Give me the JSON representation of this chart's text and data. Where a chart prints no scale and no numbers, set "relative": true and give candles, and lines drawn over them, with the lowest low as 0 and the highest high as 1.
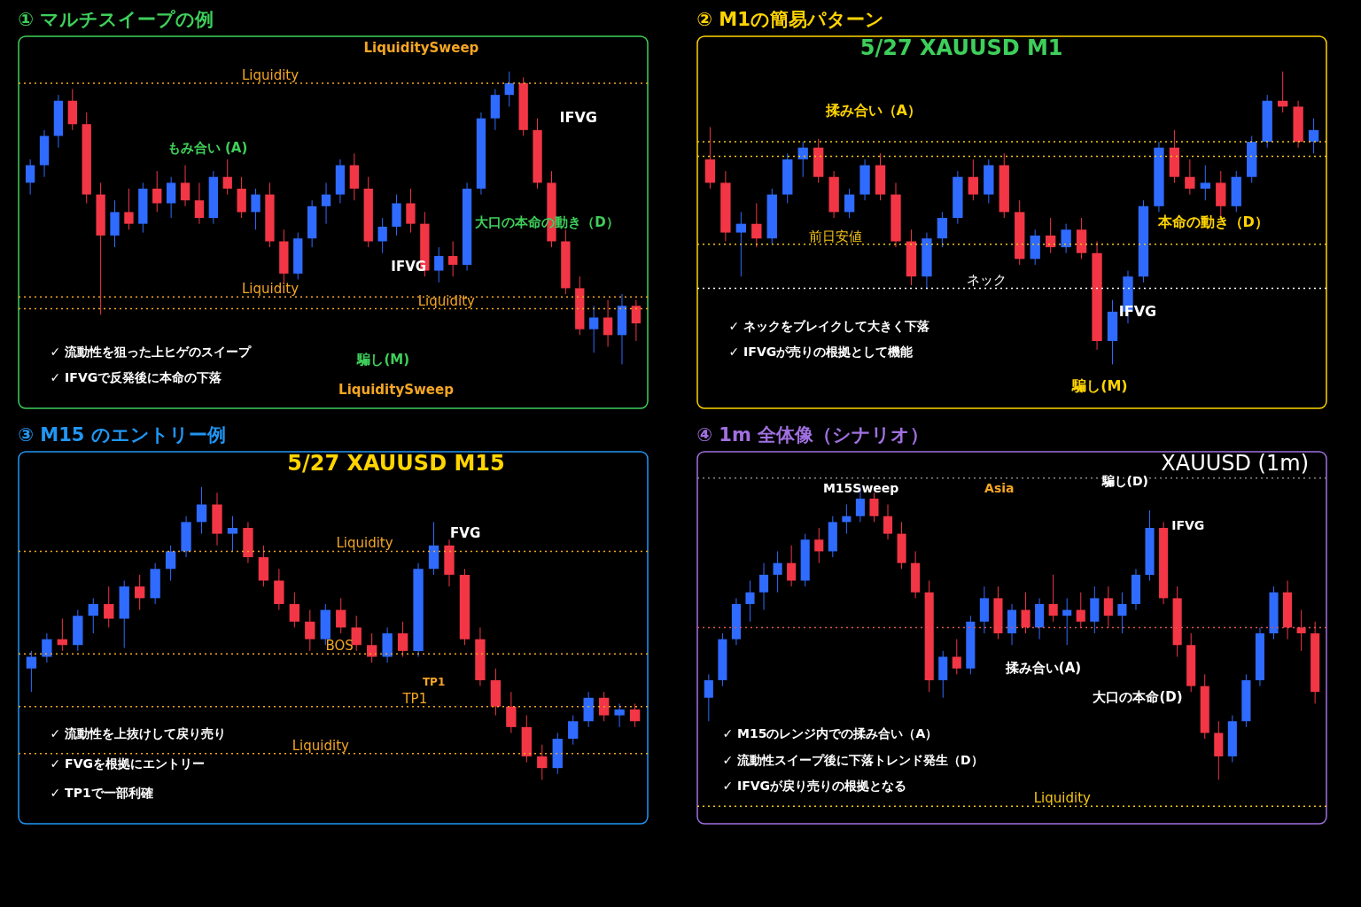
{
  "chart_data": [
    {
      "type": "candlestick",
      "title": "① マルチスイープの例",
      "relative": true,
      "categories": [
        null,
        null,
        null,
        null,
        null,
        null,
        null,
        null,
        null,
        null,
        null,
        null,
        null,
        null,
        null,
        null,
        null,
        null,
        null,
        null,
        null,
        null,
        null,
        null,
        null,
        null,
        null,
        null,
        null,
        null,
        null,
        null,
        null,
        null,
        null,
        null,
        null,
        null,
        null,
        null,
        null,
        null,
        null,
        null
      ],
      "ohlc": [
        [
          0.62,
          0.7,
          0.58,
          0.68
        ],
        [
          0.68,
          0.8,
          0.64,
          0.78
        ],
        [
          0.78,
          0.92,
          0.74,
          0.9
        ],
        [
          0.9,
          0.94,
          0.8,
          0.82
        ],
        [
          0.82,
          0.86,
          0.55,
          0.58
        ],
        [
          0.58,
          0.62,
          0.17,
          0.44
        ],
        [
          0.44,
          0.56,
          0.4,
          0.52
        ],
        [
          0.52,
          0.6,
          0.46,
          0.48
        ],
        [
          0.48,
          0.62,
          0.45,
          0.6
        ],
        [
          0.6,
          0.66,
          0.52,
          0.55
        ],
        [
          0.55,
          0.64,
          0.5,
          0.62
        ],
        [
          0.62,
          0.68,
          0.54,
          0.56
        ],
        [
          0.56,
          0.62,
          0.48,
          0.5
        ],
        [
          0.5,
          0.66,
          0.48,
          0.64
        ],
        [
          0.64,
          0.7,
          0.58,
          0.6
        ],
        [
          0.6,
          0.64,
          0.5,
          0.52
        ],
        [
          0.52,
          0.6,
          0.46,
          0.58
        ],
        [
          0.58,
          0.62,
          0.4,
          0.42
        ],
        [
          0.42,
          0.46,
          0.28,
          0.31
        ],
        [
          0.31,
          0.45,
          0.29,
          0.43
        ],
        [
          0.43,
          0.56,
          0.4,
          0.54
        ],
        [
          0.54,
          0.62,
          0.48,
          0.58
        ],
        [
          0.58,
          0.7,
          0.55,
          0.68
        ],
        [
          0.68,
          0.72,
          0.56,
          0.6
        ],
        [
          0.6,
          0.64,
          0.4,
          0.42
        ],
        [
          0.42,
          0.5,
          0.38,
          0.47
        ],
        [
          0.47,
          0.58,
          0.44,
          0.55
        ],
        [
          0.55,
          0.6,
          0.45,
          0.48
        ],
        [
          0.48,
          0.52,
          0.3,
          0.32
        ],
        [
          0.32,
          0.4,
          0.28,
          0.37
        ],
        [
          0.37,
          0.42,
          0.3,
          0.34
        ],
        [
          0.34,
          0.62,
          0.32,
          0.6
        ],
        [
          0.6,
          0.86,
          0.58,
          0.84
        ],
        [
          0.84,
          0.94,
          0.8,
          0.92
        ],
        [
          0.92,
          1.0,
          0.88,
          0.96
        ],
        [
          0.96,
          0.98,
          0.78,
          0.8
        ],
        [
          0.8,
          0.84,
          0.6,
          0.62
        ],
        [
          0.62,
          0.66,
          0.4,
          0.42
        ],
        [
          0.42,
          0.46,
          0.24,
          0.26
        ],
        [
          0.26,
          0.3,
          0.1,
          0.12
        ],
        [
          0.12,
          0.2,
          0.04,
          0.16
        ],
        [
          0.16,
          0.22,
          0.06,
          0.1
        ],
        [
          0.1,
          0.24,
          0.0,
          0.2
        ],
        [
          0.2,
          0.22,
          0.08,
          0.14
        ]
      ],
      "ref_lines": [
        {
          "axis": "y",
          "value": 0.96,
          "label": "Liquidity",
          "color": "#f5a623",
          "line_style": "dotted"
        },
        {
          "axis": "y",
          "value": 0.23,
          "label": "Liquidity",
          "color": "#f5a623",
          "line_style": "dotted"
        },
        {
          "axis": "y",
          "value": 0.19,
          "label": "Liquidity",
          "color": "#f5a623",
          "line_style": "dotted"
        }
      ],
      "annotations": [
        "LiquiditySweep",
        "IFVG",
        "もみ合い (A)",
        "大口の本命の動き（D）",
        "IFVG",
        "騙し(M)",
        "LiquiditySweep",
        "✓ 流動性を狙った上ヒゲのスイープ",
        "✓ IFVGで反発後に本命の下落"
      ]
    },
    {
      "type": "candlestick",
      "title": "② M1の簡易パターン",
      "subtitle": "5/27 XAUUSD M1",
      "relative": true,
      "categories": [
        null,
        null,
        null,
        null,
        null,
        null,
        null,
        null,
        null,
        null,
        null,
        null,
        null,
        null,
        null,
        null,
        null,
        null,
        null,
        null,
        null,
        null,
        null,
        null,
        null,
        null,
        null,
        null,
        null,
        null,
        null,
        null,
        null,
        null,
        null,
        null,
        null,
        null,
        null,
        null
      ],
      "ohlc": [
        [
          0.7,
          0.81,
          0.6,
          0.62
        ],
        [
          0.62,
          0.66,
          0.42,
          0.45
        ],
        [
          0.45,
          0.52,
          0.3,
          0.48
        ],
        [
          0.48,
          0.55,
          0.4,
          0.43
        ],
        [
          0.43,
          0.6,
          0.41,
          0.58
        ],
        [
          0.58,
          0.72,
          0.55,
          0.7
        ],
        [
          0.7,
          0.76,
          0.64,
          0.74
        ],
        [
          0.74,
          0.77,
          0.62,
          0.64
        ],
        [
          0.64,
          0.66,
          0.5,
          0.52
        ],
        [
          0.52,
          0.6,
          0.5,
          0.58
        ],
        [
          0.58,
          0.7,
          0.56,
          0.68
        ],
        [
          0.68,
          0.72,
          0.56,
          0.58
        ],
        [
          0.58,
          0.62,
          0.4,
          0.42
        ],
        [
          0.42,
          0.46,
          0.27,
          0.3
        ],
        [
          0.3,
          0.45,
          0.26,
          0.43
        ],
        [
          0.43,
          0.52,
          0.4,
          0.5
        ],
        [
          0.5,
          0.66,
          0.48,
          0.64
        ],
        [
          0.64,
          0.7,
          0.56,
          0.58
        ],
        [
          0.58,
          0.7,
          0.55,
          0.68
        ],
        [
          0.68,
          0.72,
          0.5,
          0.52
        ],
        [
          0.52,
          0.56,
          0.34,
          0.36
        ],
        [
          0.36,
          0.46,
          0.34,
          0.44
        ],
        [
          0.44,
          0.5,
          0.38,
          0.4
        ],
        [
          0.4,
          0.48,
          0.38,
          0.46
        ],
        [
          0.46,
          0.5,
          0.36,
          0.38
        ],
        [
          0.38,
          0.42,
          0.05,
          0.08
        ],
        [
          0.08,
          0.22,
          0.0,
          0.18
        ],
        [
          0.18,
          0.32,
          0.14,
          0.3
        ],
        [
          0.3,
          0.56,
          0.28,
          0.54
        ],
        [
          0.54,
          0.76,
          0.52,
          0.74
        ],
        [
          0.74,
          0.8,
          0.62,
          0.64
        ],
        [
          0.64,
          0.7,
          0.58,
          0.6
        ],
        [
          0.6,
          0.68,
          0.56,
          0.62
        ],
        [
          0.62,
          0.66,
          0.5,
          0.54
        ],
        [
          0.54,
          0.66,
          0.52,
          0.64
        ],
        [
          0.64,
          0.78,
          0.62,
          0.76
        ],
        [
          0.76,
          0.92,
          0.74,
          0.9
        ],
        [
          0.9,
          1.0,
          0.86,
          0.88
        ],
        [
          0.88,
          0.9,
          0.74,
          0.76
        ],
        [
          0.76,
          0.84,
          0.72,
          0.8
        ]
      ],
      "ref_lines": [
        {
          "axis": "y",
          "value": 0.76,
          "color": "#f5c518",
          "line_style": "dotted"
        },
        {
          "axis": "y",
          "value": 0.71,
          "color": "#f5c518",
          "line_style": "dotted"
        },
        {
          "axis": "y",
          "value": 0.41,
          "label": "前日安値",
          "color": "#f5c518",
          "line_style": "dotted"
        },
        {
          "axis": "y",
          "value": 0.26,
          "label": "ネック",
          "color": "#ffffff",
          "line_style": "dotted"
        }
      ],
      "annotations": [
        "揉み合い（A）",
        "本命の動き（D）",
        "IFVG",
        "騙し(M)",
        "✓ ネックをブレイクして大きく下落",
        "✓ IFVGが売りの根拠として機能"
      ]
    },
    {
      "type": "candlestick",
      "title": "③ M15 のエントリー例",
      "subtitle": "5/27 XAUUSD M15",
      "relative": true,
      "categories": [
        null,
        null,
        null,
        null,
        null,
        null,
        null,
        null,
        null,
        null,
        null,
        null,
        null,
        null,
        null,
        null,
        null,
        null,
        null,
        null,
        null,
        null,
        null,
        null,
        null,
        null,
        null,
        null,
        null,
        null,
        null,
        null,
        null,
        null,
        null,
        null,
        null,
        null,
        null,
        null
      ],
      "ohlc": [
        [
          0.38,
          0.44,
          0.3,
          0.42
        ],
        [
          0.42,
          0.5,
          0.4,
          0.48
        ],
        [
          0.48,
          0.55,
          0.44,
          0.46
        ],
        [
          0.46,
          0.58,
          0.44,
          0.56
        ],
        [
          0.56,
          0.62,
          0.5,
          0.6
        ],
        [
          0.6,
          0.66,
          0.52,
          0.55
        ],
        [
          0.55,
          0.68,
          0.45,
          0.66
        ],
        [
          0.66,
          0.7,
          0.58,
          0.62
        ],
        [
          0.62,
          0.74,
          0.6,
          0.72
        ],
        [
          0.72,
          0.8,
          0.68,
          0.78
        ],
        [
          0.78,
          0.9,
          0.76,
          0.88
        ],
        [
          0.88,
          1.0,
          0.84,
          0.94
        ],
        [
          0.94,
          0.98,
          0.8,
          0.84
        ],
        [
          0.84,
          0.9,
          0.78,
          0.86
        ],
        [
          0.86,
          0.88,
          0.74,
          0.76
        ],
        [
          0.76,
          0.8,
          0.66,
          0.68
        ],
        [
          0.68,
          0.72,
          0.58,
          0.6
        ],
        [
          0.6,
          0.64,
          0.52,
          0.54
        ],
        [
          0.54,
          0.58,
          0.44,
          0.48
        ],
        [
          0.48,
          0.6,
          0.46,
          0.58
        ],
        [
          0.58,
          0.62,
          0.5,
          0.52
        ],
        [
          0.52,
          0.56,
          0.44,
          0.46
        ],
        [
          0.46,
          0.5,
          0.4,
          0.42
        ],
        [
          0.42,
          0.52,
          0.4,
          0.5
        ],
        [
          0.5,
          0.54,
          0.42,
          0.44
        ],
        [
          0.44,
          0.74,
          0.42,
          0.72
        ],
        [
          0.72,
          0.88,
          0.7,
          0.8
        ],
        [
          0.8,
          0.82,
          0.66,
          0.7
        ],
        [
          0.7,
          0.72,
          0.46,
          0.48
        ],
        [
          0.48,
          0.52,
          0.32,
          0.34
        ],
        [
          0.34,
          0.38,
          0.22,
          0.25
        ],
        [
          0.25,
          0.3,
          0.16,
          0.18
        ],
        [
          0.18,
          0.22,
          0.06,
          0.08
        ],
        [
          0.08,
          0.12,
          0.0,
          0.04
        ],
        [
          0.04,
          0.16,
          0.02,
          0.14
        ],
        [
          0.14,
          0.22,
          0.12,
          0.2
        ],
        [
          0.2,
          0.3,
          0.18,
          0.28
        ],
        [
          0.28,
          0.3,
          0.2,
          0.22
        ],
        [
          0.22,
          0.26,
          0.18,
          0.24
        ],
        [
          0.24,
          0.26,
          0.18,
          0.2
        ]
      ],
      "ref_lines": [
        {
          "axis": "y",
          "value": 0.78,
          "label": "Liquidity",
          "color": "#f5a623",
          "line_style": "dotted"
        },
        {
          "axis": "y",
          "value": 0.43,
          "label": "BOS",
          "color": "#f5a623",
          "line_style": "dotted"
        },
        {
          "axis": "y",
          "value": 0.25,
          "label": "TP1",
          "color": "#f5a623",
          "line_style": "dotted"
        },
        {
          "axis": "y",
          "value": 0.09,
          "label": "Liquidity",
          "color": "#f5a623",
          "line_style": "dotted"
        }
      ],
      "annotations": [
        "FVG",
        "TP1",
        "✓ 流動性を上抜けして戻り売り",
        "✓ FVGを根拠にエントリー",
        "✓ TP1で一部利確"
      ]
    },
    {
      "type": "candlestick",
      "title": "④ 1m 全体像（シナリオ）",
      "subtitle": "XAUUSD (1m)",
      "relative": true,
      "categories": [
        null,
        null,
        null,
        null,
        null,
        null,
        null,
        null,
        null,
        null,
        null,
        null,
        null,
        null,
        null,
        null,
        null,
        null,
        null,
        null,
        null,
        null,
        null,
        null,
        null,
        null,
        null,
        null,
        null,
        null,
        null,
        null,
        null,
        null,
        null,
        null,
        null,
        null,
        null,
        null,
        null,
        null,
        null,
        null,
        null
      ],
      "ohlc": [
        [
          0.28,
          0.36,
          0.2,
          0.34
        ],
        [
          0.34,
          0.5,
          0.32,
          0.48
        ],
        [
          0.48,
          0.62,
          0.46,
          0.6
        ],
        [
          0.6,
          0.68,
          0.54,
          0.64
        ],
        [
          0.64,
          0.74,
          0.58,
          0.7
        ],
        [
          0.7,
          0.78,
          0.64,
          0.74
        ],
        [
          0.74,
          0.8,
          0.66,
          0.68
        ],
        [
          0.68,
          0.84,
          0.66,
          0.82
        ],
        [
          0.82,
          0.86,
          0.74,
          0.78
        ],
        [
          0.78,
          0.9,
          0.76,
          0.88
        ],
        [
          0.88,
          0.94,
          0.84,
          0.9
        ],
        [
          0.9,
          1.0,
          0.88,
          0.96
        ],
        [
          0.96,
          0.98,
          0.88,
          0.9
        ],
        [
          0.9,
          0.94,
          0.82,
          0.84
        ],
        [
          0.84,
          0.88,
          0.72,
          0.74
        ],
        [
          0.74,
          0.78,
          0.62,
          0.64
        ],
        [
          0.64,
          0.68,
          0.3,
          0.34
        ],
        [
          0.34,
          0.44,
          0.28,
          0.42
        ],
        [
          0.42,
          0.48,
          0.36,
          0.38
        ],
        [
          0.38,
          0.56,
          0.36,
          0.54
        ],
        [
          0.54,
          0.66,
          0.5,
          0.62
        ],
        [
          0.62,
          0.66,
          0.48,
          0.5
        ],
        [
          0.5,
          0.6,
          0.46,
          0.58
        ],
        [
          0.58,
          0.64,
          0.5,
          0.52
        ],
        [
          0.52,
          0.62,
          0.48,
          0.6
        ],
        [
          0.6,
          0.7,
          0.54,
          0.56
        ],
        [
          0.56,
          0.62,
          0.46,
          0.58
        ],
        [
          0.58,
          0.64,
          0.52,
          0.54
        ],
        [
          0.54,
          0.66,
          0.5,
          0.62
        ],
        [
          0.62,
          0.66,
          0.52,
          0.56
        ],
        [
          0.56,
          0.64,
          0.5,
          0.6
        ],
        [
          0.6,
          0.72,
          0.58,
          0.7
        ],
        [
          0.7,
          0.92,
          0.68,
          0.86
        ],
        [
          0.86,
          0.88,
          0.6,
          0.62
        ],
        [
          0.62,
          0.66,
          0.42,
          0.46
        ],
        [
          0.46,
          0.5,
          0.3,
          0.32
        ],
        [
          0.32,
          0.36,
          0.14,
          0.16
        ],
        [
          0.16,
          0.2,
          0.0,
          0.08
        ],
        [
          0.08,
          0.22,
          0.06,
          0.2
        ],
        [
          0.2,
          0.36,
          0.18,
          0.34
        ],
        [
          0.34,
          0.52,
          0.32,
          0.5
        ],
        [
          0.5,
          0.66,
          0.48,
          0.64
        ],
        [
          0.64,
          0.68,
          0.48,
          0.52
        ],
        [
          0.52,
          0.58,
          0.44,
          0.5
        ],
        [
          0.5,
          0.54,
          0.26,
          0.3
        ]
      ],
      "ref_lines": [
        {
          "axis": "y",
          "value": 1.03,
          "color": "#888888",
          "line_style": "dotted"
        },
        {
          "axis": "y",
          "value": 0.52,
          "color": "#d9534f",
          "line_style": "dotted"
        },
        {
          "axis": "y",
          "value": -0.09,
          "label": "Liquidity",
          "color": "#f5c518",
          "line_style": "dotted"
        }
      ],
      "annotations": [
        "M15Sweep",
        "Asia",
        "騙し(D)",
        "IFVG",
        "揉み合い(A)",
        "大口の本命(D)",
        "✓ M15のレンジ内での揉み合い（A）",
        "✓ 流動性スイープ後に下落トレンド発生（D）",
        "✓ IFVGが戻り売りの根拠となる"
      ]
    }
  ]
}
